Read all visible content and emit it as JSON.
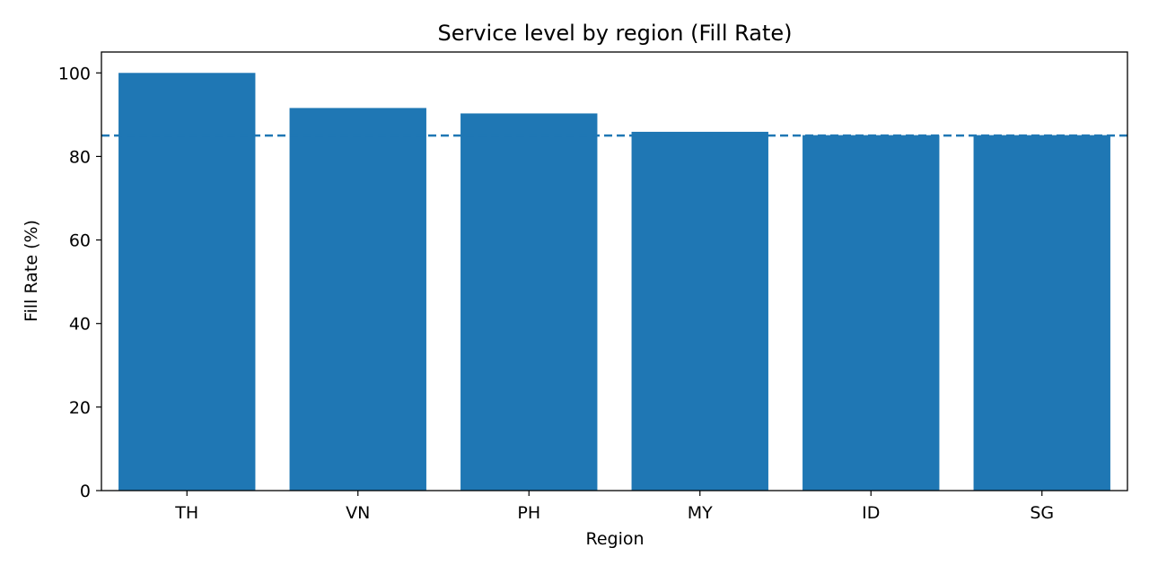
{
  "chart_data": {
    "type": "bar",
    "title": "Service level by region (Fill Rate)",
    "xlabel": "Region",
    "ylabel": "Fill Rate (%)",
    "categories": [
      "TH",
      "VN",
      "PH",
      "MY",
      "ID",
      "SG"
    ],
    "values": [
      100.0,
      91.6,
      90.3,
      85.9,
      85.1,
      85.1
    ],
    "ylim": [
      0,
      105
    ],
    "yticks": [
      0,
      20,
      40,
      60,
      80,
      100
    ],
    "reference_line": {
      "value": 85,
      "style": "dashed"
    },
    "grid": false,
    "bar_color": "#1f77b4"
  }
}
